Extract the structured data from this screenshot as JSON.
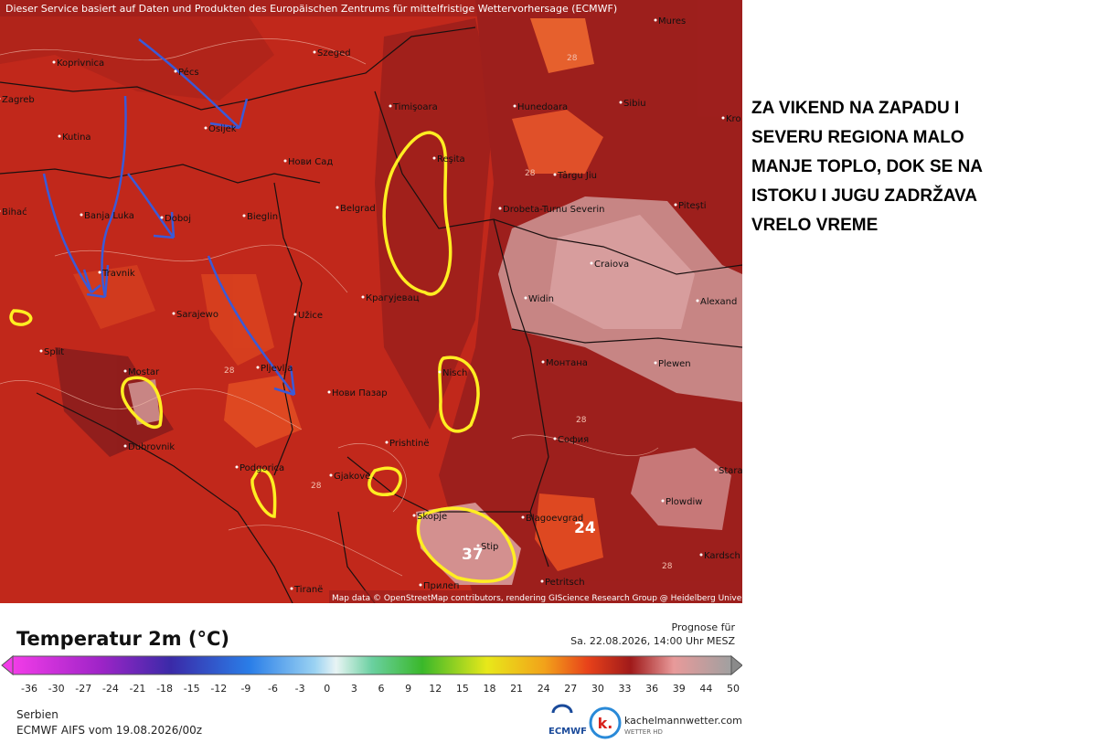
{
  "header_notice": "Dieser Service basiert auf Daten und Produkten des Europäischen Zentrums für mittelfristige Wettervorhersage (ECMWF)",
  "cities": [
    "Koprivnica",
    "Pécs",
    "Szeged",
    "Zagreb",
    "Osijek",
    "Timişoara",
    "Hunedoara",
    "Sibiu",
    "Mures",
    "Kutina",
    "Нови Сад",
    "Reşita",
    "Târgu Jiu",
    "Banja Luka",
    "Doboj",
    "Bieglin",
    "Belgrad",
    "Drobeta-Turnu Severin",
    "Pitești",
    "Craiova",
    "Travnik",
    "Крагујевац",
    "Widin",
    "Alexand",
    "Sarajewo",
    "Užice",
    "Split",
    "Mostar",
    "Pljevlja",
    "Нови Пазар",
    "Nisch",
    "Монтана",
    "Plewen",
    "Dubrovnik",
    "Prishtinë",
    "София",
    "Podgorica",
    "Gjakovë",
    "Stara",
    "Plowdiw",
    "Skopje",
    "Blagoevgrad",
    "Stip",
    "Kardsch",
    "Petritsch",
    "Tiranë",
    "Прилеп",
    "Kro",
    "Bihać"
  ],
  "contour_labels": [
    28,
    28,
    28,
    28,
    28,
    28
  ],
  "big_labels": [
    37,
    24
  ],
  "attribution": "Map data © OpenStreetMap contributors, rendering GIScience Research Group @ Heidelberg University",
  "annotation": {
    "lines": [
      "ZA VIKEND NA ZAPADU I",
      "SEVERU REGIONA MALO",
      "MANJE TOPLO, DOK SE NA",
      "ISTOKU I JUGU ZADRŽAVA",
      "VRELO VREME"
    ]
  },
  "legend": {
    "title": "Temperatur 2m (°C)",
    "ticks": [
      -36,
      -30,
      -27,
      -24,
      -21,
      -18,
      -15,
      -12,
      -9,
      -6,
      -3,
      0,
      3,
      6,
      9,
      12,
      15,
      18,
      21,
      24,
      27,
      30,
      33,
      36,
      39,
      44,
      50
    ]
  },
  "forecast": {
    "label": "Prognose für",
    "datetime": "Sa. 22.08.2026, 14:00 Uhr MESZ"
  },
  "footer": {
    "region": "Serbien",
    "model": "ECMWF AIFS vom 19.08.2026/00z"
  },
  "logos": {
    "ecmwf": "ECMWF",
    "badge": "k.",
    "site": "kachelmannwetter.com",
    "tagline": "WETTER HD"
  }
}
